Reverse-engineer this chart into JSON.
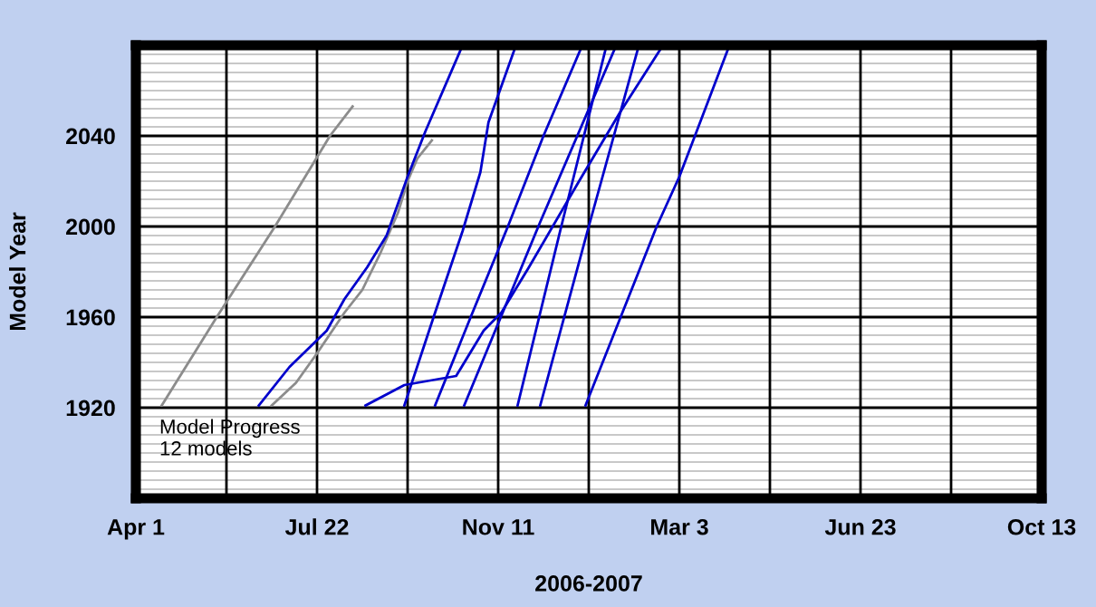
{
  "chart_data": {
    "type": "line",
    "xlabel": "2006-2007",
    "ylabel": "Model Year",
    "annotations": [
      "Model Progress\n12 models"
    ],
    "xlim": [
      "2006-04-01",
      "2007-10-13"
    ],
    "xticks": [
      {
        "value": "2006-04-01",
        "label": "Apr 1"
      },
      {
        "value": "2006-05-27",
        "label": null
      },
      {
        "value": "2006-07-22",
        "label": "Jul 22"
      },
      {
        "value": "2006-09-16",
        "label": null
      },
      {
        "value": "2006-11-11",
        "label": "Nov 11"
      },
      {
        "value": "2007-01-06",
        "label": null
      },
      {
        "value": "2007-03-03",
        "label": "Mar 3"
      },
      {
        "value": "2007-04-28",
        "label": null
      },
      {
        "value": "2007-06-23",
        "label": "Jun 23"
      },
      {
        "value": "2007-08-18",
        "label": null
      },
      {
        "value": "2007-10-13",
        "label": "Oct 13"
      }
    ],
    "ylim": [
      1880,
      2080
    ],
    "yticks": [
      {
        "value": 1880,
        "label": null
      },
      {
        "value": 1884,
        "label": null
      },
      {
        "value": 1888,
        "label": null
      },
      {
        "value": 1892,
        "label": null
      },
      {
        "value": 1896,
        "label": null
      },
      {
        "value": 1900,
        "label": null
      },
      {
        "value": 1904,
        "label": null
      },
      {
        "value": 1908,
        "label": null
      },
      {
        "value": 1912,
        "label": null
      },
      {
        "value": 1916,
        "label": null
      },
      1920,
      {
        "value": 1924,
        "label": null
      },
      {
        "value": 1928,
        "label": null
      },
      {
        "value": 1932,
        "label": null
      },
      {
        "value": 1936,
        "label": null
      },
      {
        "value": 1940,
        "label": null
      },
      {
        "value": 1944,
        "label": null
      },
      {
        "value": 1948,
        "label": null
      },
      {
        "value": 1952,
        "label": null
      },
      {
        "value": 1956,
        "label": null
      },
      1960,
      {
        "value": 1964,
        "label": null
      },
      {
        "value": 1968,
        "label": null
      },
      {
        "value": 1972,
        "label": null
      },
      {
        "value": 1976,
        "label": null
      },
      {
        "value": 1980,
        "label": null
      },
      {
        "value": 1984,
        "label": null
      },
      {
        "value": 1988,
        "label": null
      },
      {
        "value": 1992,
        "label": null
      },
      {
        "value": 1996,
        "label": null
      },
      2000,
      {
        "value": 2004,
        "label": null
      },
      {
        "value": 2008,
        "label": null
      },
      {
        "value": 2012,
        "label": null
      },
      {
        "value": 2016,
        "label": null
      },
      {
        "value": 2020,
        "label": null
      },
      {
        "value": 2024,
        "label": null
      },
      {
        "value": 2028,
        "label": null
      },
      {
        "value": 2032,
        "label": null
      },
      {
        "value": 2036,
        "label": null
      },
      2040,
      {
        "value": 2044,
        "label": null
      },
      {
        "value": 2048,
        "label": null
      },
      {
        "value": 2052,
        "label": null
      },
      {
        "value": 2056,
        "label": null
      },
      {
        "value": 2060,
        "label": null
      },
      {
        "value": 2064,
        "label": null
      },
      {
        "value": 2068,
        "label": null
      },
      {
        "value": 2072,
        "label": null
      },
      {
        "value": 2076,
        "label": null
      },
      {
        "value": 2080,
        "label": null
      }
    ],
    "grid": true,
    "marker": "none",
    "line_style": "solid",
    "series": [
      {
        "color": "#8c8c8c",
        "x": [
          "2006-04-17",
          "2006-05-21",
          "2006-06-26",
          "2006-07-30",
          "2006-08-13"
        ],
        "values": [
          1921,
          1960,
          2000,
          2040,
          2053
        ]
      },
      {
        "color": "#8c8c8c",
        "x": [
          "2006-06-24",
          "2006-07-09",
          "2006-07-22",
          "2006-08-08",
          "2006-08-19",
          "2006-08-30",
          "2006-09-10",
          "2006-09-16",
          "2006-09-22",
          "2006-10-01"
        ],
        "values": [
          1921,
          1931,
          1944,
          1962,
          1972,
          1988,
          2006,
          2020,
          2030,
          2038
        ]
      },
      {
        "color": "#0000cc",
        "x": [
          "2006-06-16",
          "2006-07-05",
          "2006-07-28",
          "2006-08-08",
          "2006-08-22",
          "2006-09-03",
          "2006-09-16",
          "2006-09-27",
          "2006-10-20"
        ],
        "values": [
          1921,
          1938,
          1954,
          1968,
          1982,
          1996,
          2022,
          2042,
          2080
        ]
      },
      {
        "color": "#0000cc",
        "x": [
          "2006-08-21",
          "2006-09-14",
          "2006-10-16",
          "2006-11-02",
          "2006-11-13",
          "2006-11-30",
          "2006-12-31",
          "2007-01-25",
          "2007-02-20"
        ],
        "values": [
          1921,
          1930,
          1934,
          1954,
          1962,
          1982,
          2020,
          2050,
          2079
        ]
      },
      {
        "color": "#0000cc",
        "x": [
          "2006-09-14",
          "2006-10-03",
          "2006-10-20",
          "2006-10-31",
          "2006-11-05",
          "2006-11-22"
        ],
        "values": [
          1921,
          1962,
          1998,
          2024,
          2046,
          2080
        ]
      },
      {
        "color": "#0000cc",
        "x": [
          "2006-10-03",
          "2006-10-25",
          "2006-11-17",
          "2006-12-09",
          "2007-01-02"
        ],
        "values": [
          1921,
          1960,
          2000,
          2040,
          2080
        ]
      },
      {
        "color": "#0000cc",
        "x": [
          "2006-10-21",
          "2006-12-07",
          "2007-01-23"
        ],
        "values": [
          1921,
          2002,
          2080
        ]
      },
      {
        "color": "#0000cc",
        "x": [
          "2006-11-23",
          "2006-12-20",
          "2007-01-17"
        ],
        "values": [
          1921,
          2000,
          2080
        ]
      },
      {
        "color": "#0000cc",
        "x": [
          "2006-12-07",
          "2007-01-06",
          "2007-02-06"
        ],
        "values": [
          1921,
          2000,
          2080
        ]
      },
      {
        "color": "#0000cc",
        "x": [
          "2007-01-04",
          "2007-02-17",
          "2007-03-03",
          "2007-04-03"
        ],
        "values": [
          1921,
          2000,
          2022,
          2080
        ]
      }
    ]
  }
}
